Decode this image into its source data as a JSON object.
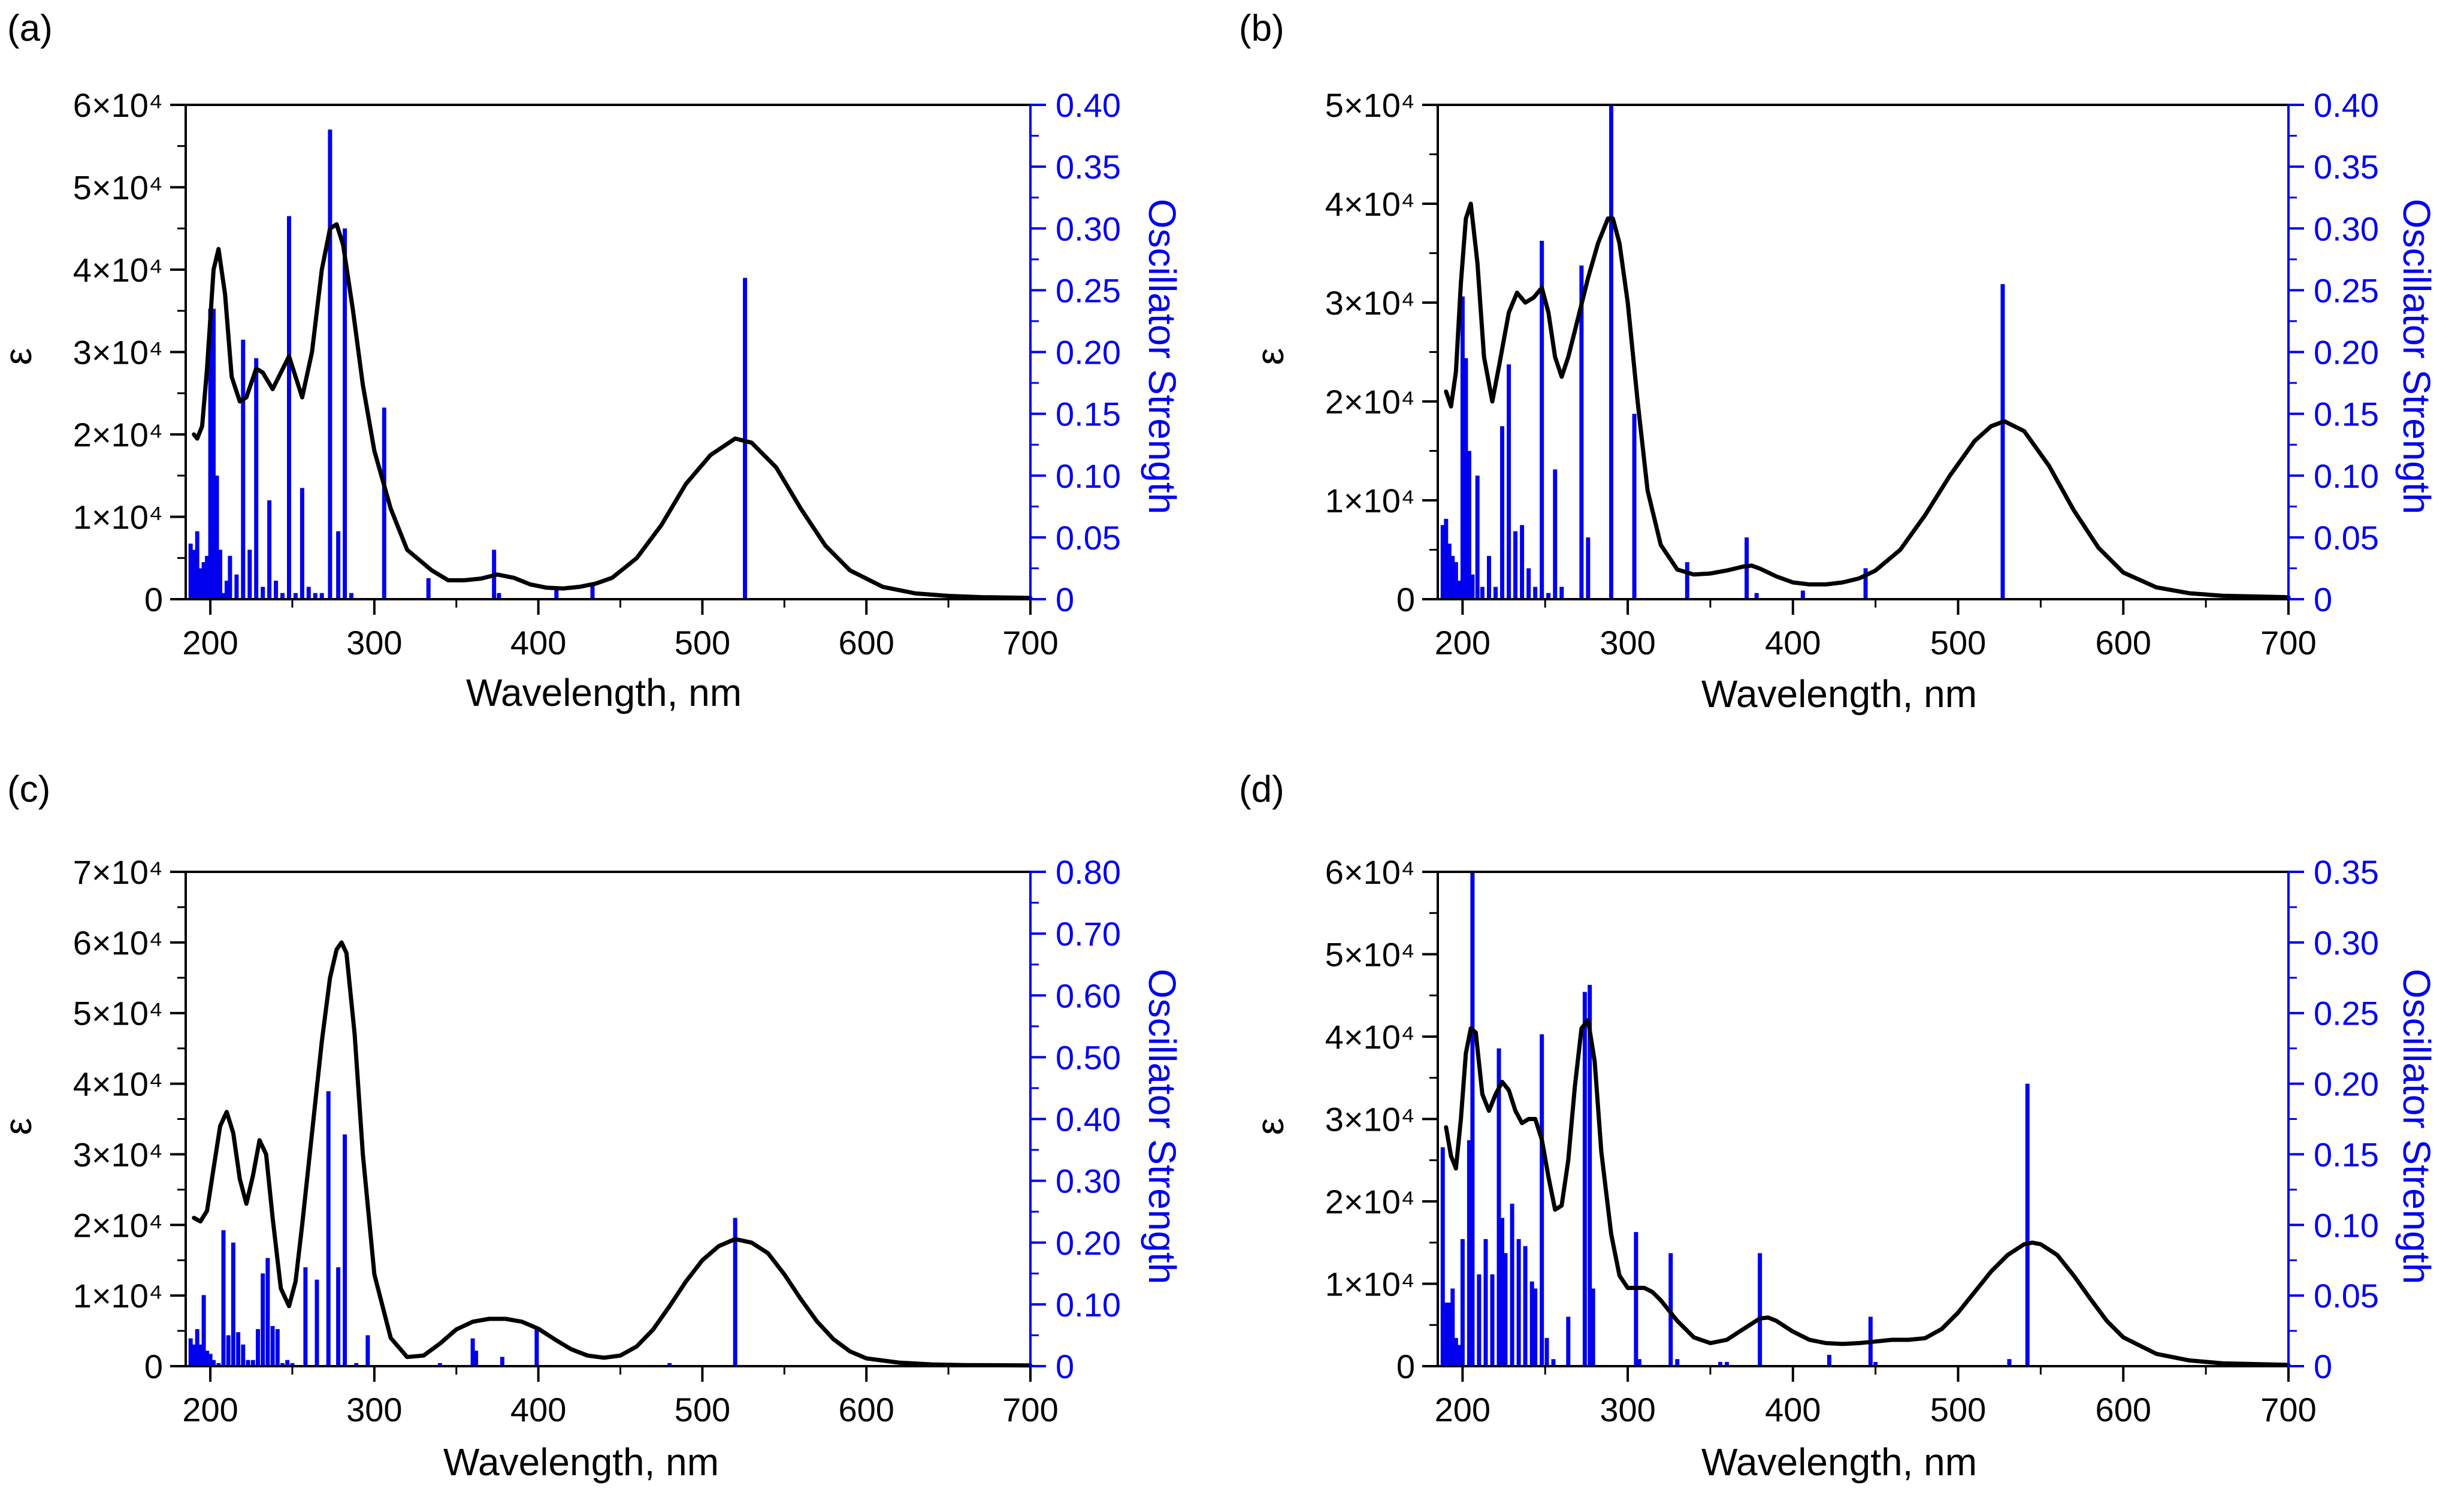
{
  "colors": {
    "spectrum": "#000000",
    "sticks": "#0000ee",
    "axis": "#000000",
    "right_axis": "#0000ee"
  },
  "chart_data": [
    {
      "panel": "(a)",
      "type": "bar",
      "xlabel": "Wavelength, nm",
      "ylabel": "ε",
      "y2label": "Oscillator Strength",
      "xlim": [
        185,
        700
      ],
      "xticks": [
        200,
        300,
        400,
        500,
        600,
        700
      ],
      "ylim": [
        0,
        60000
      ],
      "yticks": [
        0,
        10000,
        20000,
        30000,
        40000,
        50000,
        60000
      ],
      "ytick_labels": [
        "0",
        "1×10⁴",
        "2×10⁴",
        "3×10⁴",
        "4×10⁴",
        "5×10⁴",
        "6×10⁴"
      ],
      "y2lim": [
        0,
        0.4
      ],
      "y2ticks": [
        0,
        0.05,
        0.1,
        0.15,
        0.2,
        0.25,
        0.3,
        0.35,
        0.4
      ],
      "y2tick_labels": [
        "0",
        "0.05",
        "0.10",
        "0.15",
        "0.20",
        "0.25",
        "0.30",
        "0.35",
        "0.40"
      ],
      "spectrum": {
        "x": [
          190,
          192,
          195,
          198,
          202,
          205,
          209,
          213,
          218,
          222,
          228,
          232,
          238,
          243,
          248,
          252,
          256,
          262,
          268,
          273,
          277,
          281,
          287,
          293,
          300,
          310,
          320,
          335,
          345,
          355,
          365,
          375,
          385,
          395,
          405,
          415,
          425,
          435,
          445,
          460,
          475,
          490,
          505,
          520,
          530,
          545,
          560,
          575,
          590,
          610,
          630,
          650,
          670,
          700
        ],
        "y": [
          20000,
          19500,
          21000,
          28000,
          40000,
          42500,
          37000,
          27000,
          24000,
          24500,
          28000,
          27500,
          25500,
          27500,
          29500,
          27000,
          24500,
          30000,
          40000,
          45000,
          45500,
          43000,
          35000,
          26000,
          18000,
          11000,
          6000,
          3500,
          2300,
          2300,
          2500,
          3000,
          2600,
          1800,
          1400,
          1300,
          1500,
          1900,
          2600,
          5000,
          9000,
          14000,
          17500,
          19500,
          19000,
          16000,
          11000,
          6500,
          3500,
          1500,
          700,
          400,
          250,
          150
        ]
      },
      "sticks": {
        "x": [
          188,
          190,
          192,
          194,
          196,
          198,
          200,
          202,
          204,
          206,
          208,
          210,
          212,
          216,
          220,
          224,
          228,
          232,
          236,
          240,
          244,
          248,
          252,
          256,
          260,
          264,
          268,
          273,
          278,
          282,
          286,
          306,
          333,
          373,
          376,
          411,
          433,
          526
        ],
        "f": [
          0.045,
          0.04,
          0.055,
          0.025,
          0.03,
          0.035,
          0.235,
          0.235,
          0.1,
          0.04,
          0.005,
          0.015,
          0.035,
          0.02,
          0.21,
          0.04,
          0.195,
          0.01,
          0.08,
          0.015,
          0.005,
          0.31,
          0.005,
          0.09,
          0.01,
          0.005,
          0.005,
          0.38,
          0.055,
          0.3,
          0.005,
          0.155,
          0.017,
          0.04,
          0.005,
          0.01,
          0.012,
          0.26
        ]
      }
    },
    {
      "panel": "(b)",
      "type": "bar",
      "xlabel": "Wavelength, nm",
      "ylabel": "ε",
      "y2label": "Oscillator Strength",
      "xlim": [
        185,
        700
      ],
      "xticks": [
        200,
        300,
        400,
        500,
        600,
        700
      ],
      "ylim": [
        0,
        50000
      ],
      "yticks": [
        0,
        10000,
        20000,
        30000,
        40000,
        50000
      ],
      "ytick_labels": [
        "0",
        "1×10⁴",
        "2×10⁴",
        "3×10⁴",
        "4×10⁴",
        "5×10⁴"
      ],
      "y2lim": [
        0,
        0.4
      ],
      "y2ticks": [
        0,
        0.05,
        0.1,
        0.15,
        0.2,
        0.25,
        0.3,
        0.35,
        0.4
      ],
      "y2tick_labels": [
        "0",
        "0.05",
        "0.10",
        "0.15",
        "0.20",
        "0.25",
        "0.30",
        "0.35",
        "0.40"
      ],
      "spectrum": {
        "x": [
          190,
          193,
          196,
          199,
          202,
          205,
          209,
          213,
          218,
          222,
          228,
          233,
          238,
          243,
          248,
          252,
          256,
          260,
          264,
          270,
          276,
          282,
          288,
          291,
          295,
          300,
          306,
          312,
          320,
          330,
          340,
          350,
          360,
          370,
          375,
          380,
          390,
          400,
          410,
          420,
          430,
          440,
          450,
          465,
          480,
          495,
          510,
          520,
          528,
          540,
          555,
          570,
          585,
          600,
          620,
          640,
          660,
          700
        ],
        "y": [
          21000,
          19500,
          23000,
          32000,
          38500,
          40000,
          34000,
          24500,
          20000,
          23500,
          29000,
          31000,
          30000,
          30500,
          31500,
          29000,
          24500,
          22500,
          24500,
          28500,
          32500,
          36000,
          38500,
          38500,
          36000,
          30000,
          20000,
          11000,
          5500,
          3000,
          2500,
          2600,
          2900,
          3300,
          3400,
          3100,
          2300,
          1700,
          1500,
          1500,
          1700,
          2100,
          2900,
          5000,
          8500,
          12500,
          16000,
          17500,
          18000,
          17000,
          13500,
          9000,
          5200,
          2700,
          1200,
          600,
          350,
          200
        ]
      },
      "sticks": {
        "x": [
          188,
          190,
          192,
          194,
          196,
          198,
          200,
          202,
          204,
          206,
          209,
          212,
          216,
          220,
          224,
          228,
          232,
          236,
          240,
          244,
          248,
          252,
          256,
          260,
          272,
          276,
          290,
          304,
          336,
          372,
          378,
          406,
          444,
          527
        ],
        "f": [
          0.06,
          0.065,
          0.045,
          0.035,
          0.03,
          0.015,
          0.245,
          0.195,
          0.12,
          0.02,
          0.1,
          0.01,
          0.035,
          0.01,
          0.14,
          0.19,
          0.055,
          0.06,
          0.025,
          0.01,
          0.29,
          0.005,
          0.105,
          0.01,
          0.27,
          0.05,
          0.4,
          0.15,
          0.03,
          0.05,
          0.005,
          0.007,
          0.025,
          0.255
        ]
      }
    },
    {
      "panel": "(c)",
      "type": "bar",
      "xlabel": "Wavelength, nm",
      "ylabel": "ε",
      "y2label": "Oscillator Strength",
      "xlim": [
        185,
        700
      ],
      "xticks": [
        200,
        300,
        400,
        500,
        600,
        700
      ],
      "ylim": [
        0,
        70000
      ],
      "yticks": [
        0,
        10000,
        20000,
        30000,
        40000,
        50000,
        60000,
        70000
      ],
      "ytick_labels": [
        "0",
        "1×10⁴",
        "2×10⁴",
        "3×10⁴",
        "4×10⁴",
        "5×10⁴",
        "6×10⁴",
        "7×10⁴"
      ],
      "y2lim": [
        0,
        0.8
      ],
      "y2ticks": [
        0,
        0.1,
        0.2,
        0.3,
        0.4,
        0.5,
        0.6,
        0.7,
        0.8
      ],
      "y2tick_labels": [
        "0",
        "0.10",
        "0.20",
        "0.30",
        "0.40",
        "0.50",
        "0.60",
        "0.70",
        "0.80"
      ],
      "spectrum": {
        "x": [
          190,
          194,
          198,
          202,
          206,
          210,
          214,
          218,
          222,
          226,
          230,
          234,
          238,
          243,
          248,
          252,
          256,
          262,
          268,
          273,
          277,
          280,
          283,
          288,
          293,
          300,
          310,
          320,
          330,
          340,
          350,
          360,
          370,
          380,
          390,
          400,
          410,
          420,
          430,
          440,
          450,
          460,
          470,
          480,
          490,
          500,
          510,
          520,
          530,
          540,
          550,
          560,
          570,
          580,
          590,
          600,
          620,
          640,
          660,
          700
        ],
        "y": [
          21000,
          20500,
          22000,
          28000,
          34000,
          36000,
          33000,
          26500,
          23000,
          27000,
          32000,
          30000,
          21000,
          11000,
          8500,
          12000,
          20000,
          33000,
          46000,
          55000,
          59000,
          60000,
          58500,
          47000,
          30000,
          13000,
          4000,
          1300,
          1500,
          3200,
          5200,
          6300,
          6700,
          6700,
          6300,
          5300,
          3800,
          2400,
          1500,
          1200,
          1500,
          2800,
          5200,
          8500,
          12000,
          15000,
          17000,
          18000,
          17500,
          16000,
          13000,
          9500,
          6300,
          3800,
          2100,
          1100,
          500,
          250,
          150,
          100
        ]
      },
      "sticks": {
        "x": [
          188,
          190,
          192,
          194,
          196,
          198,
          200,
          202,
          205,
          208,
          211,
          214,
          217,
          220,
          223,
          226,
          229,
          232,
          235,
          238,
          241,
          244,
          247,
          250,
          258,
          265,
          272,
          278,
          282,
          289,
          296,
          340,
          360,
          362,
          378,
          399,
          480,
          520
        ],
        "f": [
          0.045,
          0.035,
          0.06,
          0.035,
          0.115,
          0.025,
          0.02,
          0.01,
          0.005,
          0.22,
          0.05,
          0.2,
          0.055,
          0.035,
          0.01,
          0.01,
          0.06,
          0.15,
          0.175,
          0.065,
          0.06,
          0.005,
          0.01,
          0.005,
          0.16,
          0.14,
          0.445,
          0.16,
          0.375,
          0.005,
          0.05,
          0.005,
          0.045,
          0.025,
          0.015,
          0.06,
          0.005,
          0.24
        ]
      }
    },
    {
      "panel": "(d)",
      "type": "bar",
      "xlabel": "Wavelength, nm",
      "ylabel": "ε",
      "y2label": "Oscillator Strength",
      "xlim": [
        185,
        700
      ],
      "xticks": [
        200,
        300,
        400,
        500,
        600,
        700
      ],
      "ylim": [
        0,
        60000
      ],
      "yticks": [
        0,
        10000,
        20000,
        30000,
        40000,
        50000,
        60000
      ],
      "ytick_labels": [
        "0",
        "1×10⁴",
        "2×10⁴",
        "3×10⁴",
        "4×10⁴",
        "5×10⁴",
        "6×10⁴"
      ],
      "y2lim": [
        0,
        0.35
      ],
      "y2ticks": [
        0,
        0.05,
        0.1,
        0.15,
        0.2,
        0.25,
        0.3,
        0.35
      ],
      "y2tick_labels": [
        "0",
        "0.05",
        "0.10",
        "0.15",
        "0.20",
        "0.25",
        "0.30",
        "0.35"
      ],
      "spectrum": {
        "x": [
          190,
          193,
          196,
          199,
          202,
          205,
          208,
          212,
          216,
          220,
          224,
          228,
          232,
          236,
          240,
          244,
          248,
          252,
          256,
          260,
          264,
          268,
          272,
          276,
          280,
          284,
          290,
          295,
          300,
          305,
          310,
          315,
          320,
          330,
          340,
          350,
          360,
          370,
          380,
          385,
          390,
          400,
          410,
          420,
          430,
          440,
          450,
          460,
          470,
          480,
          490,
          500,
          510,
          520,
          530,
          540,
          545,
          550,
          560,
          570,
          580,
          590,
          600,
          620,
          640,
          660,
          700
        ],
        "y": [
          29000,
          25500,
          24000,
          30000,
          38000,
          41000,
          40500,
          33000,
          31000,
          33000,
          34500,
          33500,
          31000,
          29500,
          30000,
          30000,
          27500,
          23000,
          19000,
          19500,
          25000,
          34000,
          41000,
          42000,
          37000,
          26000,
          16000,
          11000,
          9500,
          9500,
          9500,
          9000,
          8000,
          5500,
          3500,
          2800,
          3200,
          4500,
          5800,
          5900,
          5500,
          4200,
          3200,
          2800,
          2700,
          2800,
          3000,
          3200,
          3200,
          3400,
          4500,
          6500,
          9000,
          11500,
          13500,
          14800,
          15000,
          14800,
          13500,
          11000,
          8200,
          5500,
          3500,
          1500,
          700,
          350,
          150
        ]
      },
      "sticks": {
        "x": [
          188,
          190,
          192,
          194,
          196,
          198,
          200,
          204,
          206,
          210,
          214,
          218,
          222,
          224,
          226,
          230,
          234,
          238,
          242,
          244,
          248,
          251,
          255,
          264,
          274,
          277,
          279,
          305,
          307,
          326,
          330,
          356,
          360,
          380,
          422,
          447,
          450,
          531,
          542
        ],
        "f": [
          0.155,
          0.045,
          0.045,
          0.055,
          0.02,
          0.015,
          0.09,
          0.16,
          0.35,
          0.065,
          0.09,
          0.065,
          0.225,
          0.105,
          0.08,
          0.115,
          0.09,
          0.085,
          0.06,
          0.055,
          0.235,
          0.02,
          0.005,
          0.035,
          0.265,
          0.27,
          0.055,
          0.095,
          0.005,
          0.08,
          0.005,
          0.003,
          0.003,
          0.08,
          0.008,
          0.035,
          0.003,
          0.005,
          0.2
        ]
      }
    }
  ]
}
